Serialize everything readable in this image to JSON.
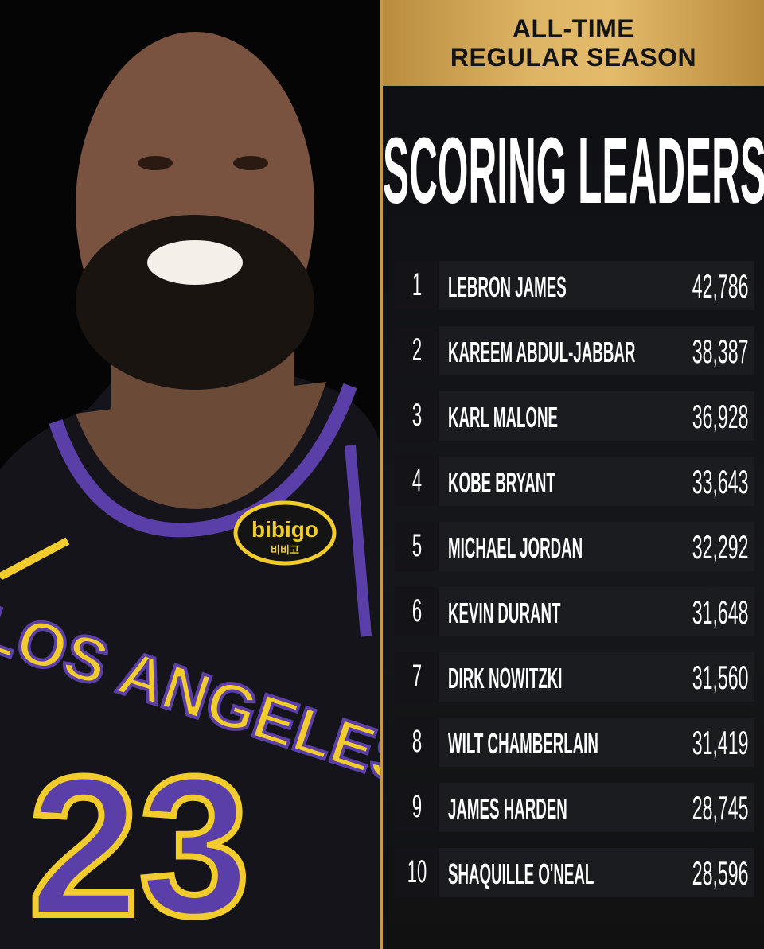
{
  "header": {
    "line1": "ALL-TIME",
    "line2": "REGULAR SEASON"
  },
  "title": "SCORING LEADERS",
  "leaders": [
    {
      "rank": "1",
      "name": "LEBRON JAMES",
      "points": "42,786"
    },
    {
      "rank": "2",
      "name": "KAREEM ABDUL-JABBAR",
      "points": "38,387"
    },
    {
      "rank": "3",
      "name": "KARL MALONE",
      "points": "36,928"
    },
    {
      "rank": "4",
      "name": "KOBE BRYANT",
      "points": "33,643"
    },
    {
      "rank": "5",
      "name": "MICHAEL JORDAN",
      "points": "32,292"
    },
    {
      "rank": "6",
      "name": "KEVIN DURANT",
      "points": "31,648"
    },
    {
      "rank": "7",
      "name": "DIRK NOWITZKI",
      "points": "31,560"
    },
    {
      "rank": "8",
      "name": "WILT CHAMBERLAIN",
      "points": "31,419"
    },
    {
      "rank": "9",
      "name": "JAMES HARDEN",
      "points": "28,745"
    },
    {
      "rank": "10",
      "name": "SHAQUILLE O'NEAL",
      "points": "28,596"
    }
  ],
  "photo": {
    "jersey_text": "LOS ANGELES",
    "jersey_number": "23",
    "patch": "bibigo",
    "patch_sub": "비비고"
  },
  "colors": {
    "gold": "#d9ae5c",
    "panel": "#16171b",
    "purple": "#5b3fa8",
    "yellow": "#f1cc2c"
  }
}
